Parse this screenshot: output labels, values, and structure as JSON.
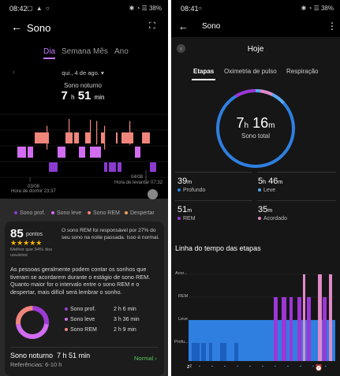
{
  "left": {
    "status": {
      "time": "08:42",
      "battery": "38%"
    },
    "title": "Sono",
    "tabs": [
      "Dia",
      "Semana",
      "Mês",
      "Ano"
    ],
    "date_label": "qui., 4 de ago.",
    "sleep_title": "Sono noturno",
    "sleep_hours": "7",
    "sleep_h_unit": "h",
    "sleep_minutes": "51",
    "sleep_min_unit": "min",
    "chart": {
      "start_date": "03/08",
      "start_label": "Hora de dormir 23:37",
      "end_date": "04/08",
      "end_label": "Hora de levantar 07:32"
    },
    "legend": [
      "Sono prof.",
      "Sono leve",
      "Sono REM",
      "Despertar"
    ],
    "score": "85",
    "score_unit": "pontos",
    "better_than": "Melhor que 94% dos usuários",
    "rem_note": "O sono REM foi responsável por 27% do seu sono na noite passada. Isso é normal.",
    "paragraph": "As pessoas geralmente podem contar os sonhos que tiveram se acordarem durante o estágio de sono REM. Quanto maior for o intervalo entre o sono REM e o despertar, mais difícil será lembrar o sonho.",
    "stages": [
      {
        "name": "Sono prof.",
        "duration": "2 h 6 min",
        "color": "#9d3bd6"
      },
      {
        "name": "Sono leve",
        "duration": "3 h 36 min",
        "color": "#d26cf0"
      },
      {
        "name": "Sono REM",
        "duration": "2 h 9 min",
        "color": "#f0857c"
      }
    ],
    "summary_title": "Sono noturno  7 h 51 min",
    "summary_status": "Normal",
    "references": "Referências: 6-10 h"
  },
  "right": {
    "status": {
      "time": "08:41",
      "battery": "38%"
    },
    "title": "Sono",
    "day_label": "Hoje",
    "tabs": [
      "Etapas",
      "Oximetria de pulso",
      "Respiração"
    ],
    "total_hours": "7",
    "total_minutes": "16",
    "h_unit": "h",
    "m_unit": "m",
    "total_label": "Sono total",
    "stats": [
      {
        "value": "39",
        "unit": "m",
        "label": "Profundo",
        "color": "#2e7fe0"
      },
      {
        "value_h": "5",
        "value": "46",
        "unit": "m",
        "label": "Leve",
        "color": "#5aa8f0"
      },
      {
        "value": "51",
        "unit": "m",
        "label": "REM",
        "color": "#9d36d6"
      },
      {
        "value": "35",
        "unit": "m",
        "label": "Acordado",
        "color": "#e08ac8"
      }
    ],
    "timeline_title": "Linha do tempo das etapas",
    "timeline_levels": [
      "Acor...",
      "REM",
      "Leve",
      "Profu..."
    ]
  }
}
